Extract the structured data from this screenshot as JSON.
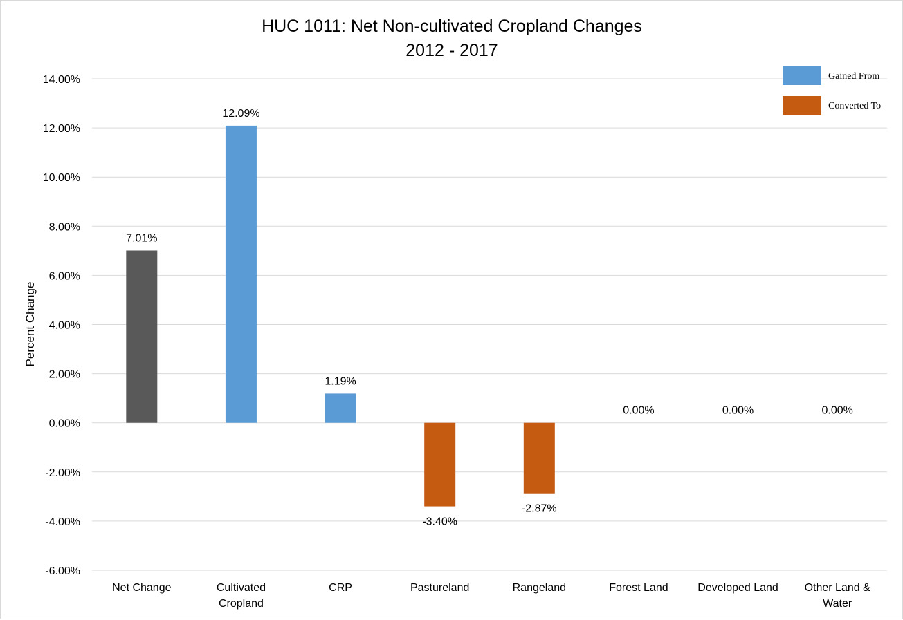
{
  "chart_data": {
    "type": "bar",
    "title": "HUC 1011: Net Non-cultivated Cropland Changes",
    "subtitle": "2012 - 2017",
    "xlabel": "",
    "ylabel": "Percent Change",
    "ylim": [
      -6,
      14
    ],
    "ytick_step": 2,
    "ytick_labels": [
      "-6.00%",
      "-4.00%",
      "-2.00%",
      "0.00%",
      "2.00%",
      "4.00%",
      "6.00%",
      "8.00%",
      "10.00%",
      "12.00%",
      "14.00%"
    ],
    "grid": true,
    "legend_position": "top-right",
    "categories": [
      [
        "Net Change"
      ],
      [
        "Cultivated",
        "Cropland"
      ],
      [
        "CRP"
      ],
      [
        "Pastureland"
      ],
      [
        "Rangeland"
      ],
      [
        "Forest Land"
      ],
      [
        "Developed Land"
      ],
      [
        "Other Land &",
        "Water"
      ]
    ],
    "values": [
      7.01,
      12.09,
      1.19,
      -3.4,
      -2.87,
      0.0,
      0.0,
      0.0
    ],
    "data_labels": [
      "7.01%",
      "12.09%",
      "1.19%",
      "-3.40%",
      "-2.87%",
      "0.00%",
      "0.00%",
      "0.00%"
    ],
    "bar_groups": [
      "net",
      "gained",
      "gained",
      "converted",
      "converted",
      "gained",
      "gained",
      "gained"
    ],
    "legend": [
      {
        "key": "gained",
        "label": "Gained From",
        "color": "#5b9bd5"
      },
      {
        "key": "converted",
        "label": "Converted To",
        "color": "#c55a11"
      }
    ],
    "colors": {
      "net": "#595959",
      "gained": "#5b9bd5",
      "converted": "#c55a11",
      "gridline": "#d9d9d9"
    }
  }
}
